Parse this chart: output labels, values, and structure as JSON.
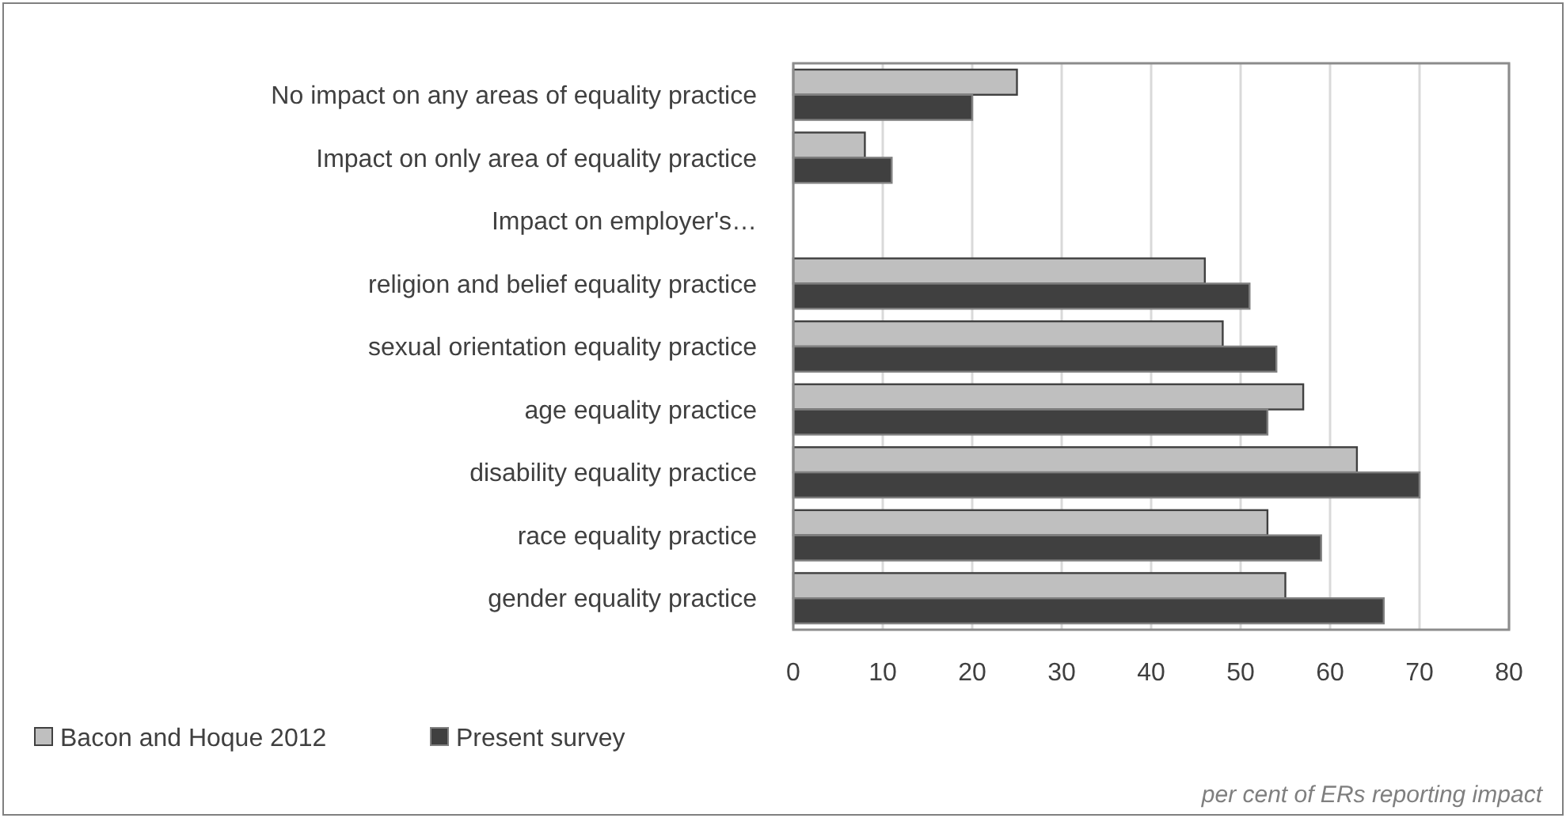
{
  "chart_data": {
    "type": "bar",
    "orientation": "horizontal",
    "categories": [
      "No impact on any areas of equality practice",
      "Impact on only area of equality practice",
      "Impact on employer's…",
      "religion and belief equality practice",
      "sexual orientation equality practice",
      "age equality practice",
      "disability equality practice",
      "race equality practice",
      "gender equality practice"
    ],
    "series": [
      {
        "name": "Bacon and Hoque 2012",
        "color": "#bfbfbf",
        "values": [
          25,
          8,
          null,
          46,
          48,
          57,
          63,
          53,
          55
        ]
      },
      {
        "name": "Present survey",
        "color": "#404040",
        "values": [
          20,
          11,
          null,
          51,
          54,
          53,
          70,
          59,
          66
        ]
      }
    ],
    "xlim": [
      0,
      80
    ],
    "xticks": [
      0,
      10,
      20,
      30,
      40,
      50,
      60,
      70,
      80
    ],
    "grid": "x",
    "legend": "bottom left",
    "annotations": [
      "per cent of ERs reporting impact"
    ]
  }
}
